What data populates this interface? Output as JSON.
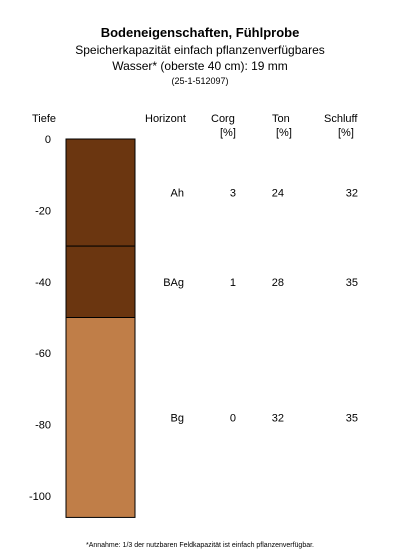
{
  "title": "Bodeneigenschaften, Fühlprobe",
  "subtitle_line1": "Speicherkapazität einfach pflanzenverfügbares",
  "subtitle_line2": "Wasser* (oberste 40 cm): 19 mm",
  "sample_id": "(25-1-512097)",
  "headers": {
    "tiefe": "Tiefe",
    "horizont": "Horizont",
    "corg_name": "Corg",
    "corg_unit": "[%]",
    "ton_name": "Ton",
    "ton_unit": "[%]",
    "schluff_name": "Schluff",
    "schluff_unit": "[%]"
  },
  "footnote": "*Annahme: 1/3 der nutzbaren Feldkapazität ist einfach pflanzenverfügbar.",
  "chart_data": {
    "type": "table",
    "ylabel": "Tiefe",
    "ylim": [
      -106,
      0
    ],
    "yticks": [
      0,
      -20,
      -40,
      -60,
      -80,
      -100
    ],
    "horizons": [
      {
        "name": "Ah",
        "top": 0,
        "bottom": -30,
        "corg": "3",
        "ton": "24",
        "schluff": "32",
        "color": "#6b3610"
      },
      {
        "name": "BAg",
        "top": -30,
        "bottom": -50,
        "corg": "1",
        "ton": "28",
        "schluff": "35",
        "color": "#6b3610"
      },
      {
        "name": "Bg",
        "top": -50,
        "bottom": -106,
        "corg": "0",
        "ton": "32",
        "schluff": "35",
        "color": "#c07e48"
      }
    ]
  }
}
